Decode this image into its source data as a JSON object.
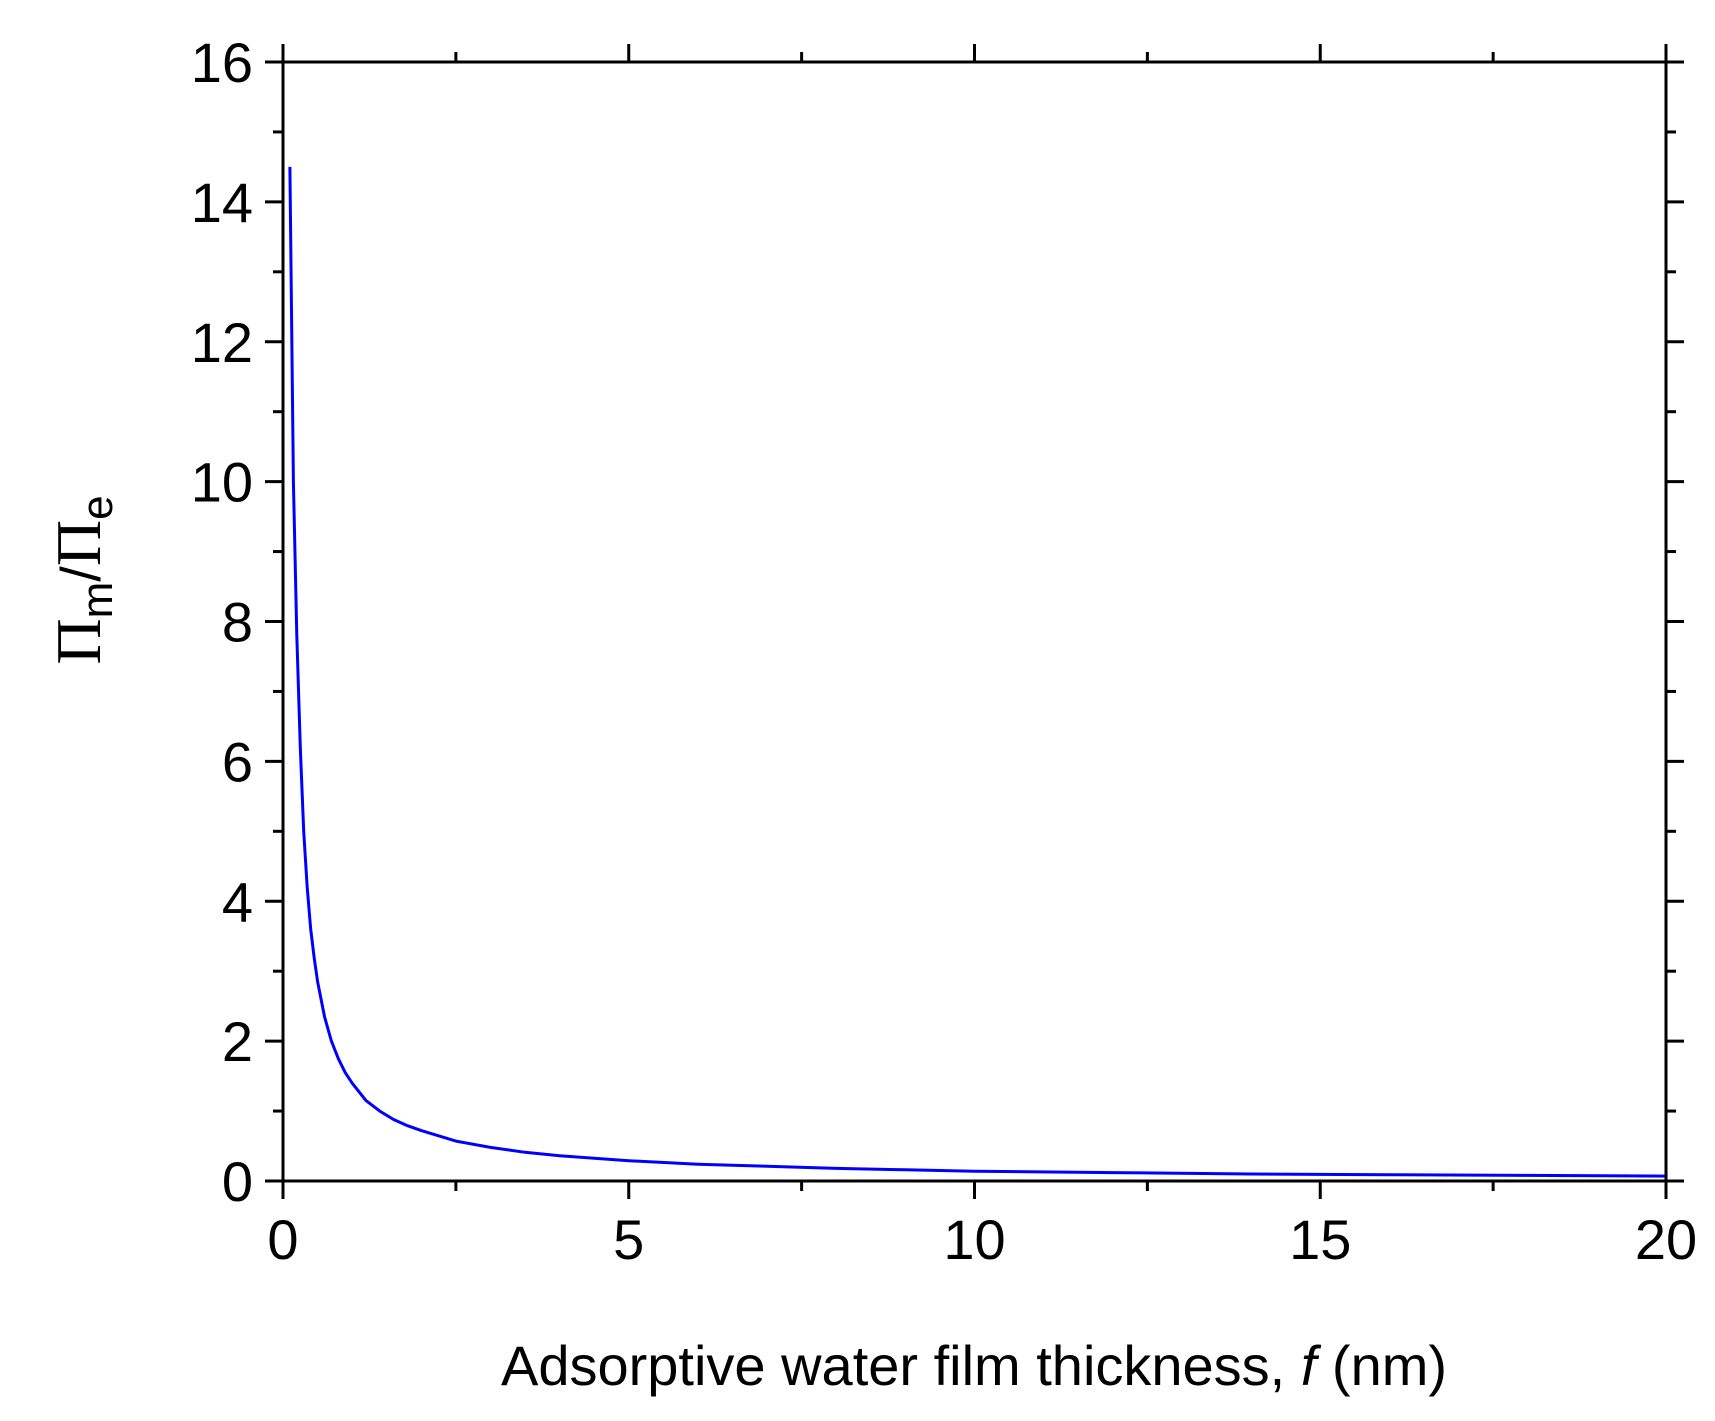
{
  "chart_data": {
    "type": "line",
    "xlabel": {
      "prefix": "Adsorptive water film thickness, ",
      "variable": "f",
      "suffix": " (nm)"
    },
    "ylabel": {
      "num": "Π",
      "num_sub": "m",
      "slash": "/",
      "den": "Π",
      "den_sub": "e"
    },
    "xlim": [
      0,
      20
    ],
    "ylim": [
      0,
      16
    ],
    "x_ticks": [
      0,
      5,
      10,
      15,
      20
    ],
    "x_tick_labels": [
      "0",
      "5",
      "10",
      "15",
      "20"
    ],
    "y_ticks": [
      0,
      2,
      4,
      6,
      8,
      10,
      12,
      14,
      16
    ],
    "y_tick_labels": [
      "0",
      "2",
      "4",
      "6",
      "8",
      "10",
      "12",
      "14",
      "16"
    ],
    "grid": false,
    "line_color": "#0000ff",
    "series": [
      {
        "x": [
          0.1,
          0.15,
          0.2,
          0.25,
          0.3,
          0.35,
          0.4,
          0.45,
          0.5,
          0.6,
          0.7,
          0.8,
          0.9,
          1.0,
          1.2,
          1.4,
          1.6,
          1.8,
          2.0,
          2.5,
          3.0,
          3.5,
          4.0,
          5.0,
          6.0,
          7.0,
          8.0,
          9.0,
          10.0,
          12.0,
          14.0,
          16.0,
          18.0,
          20.0
        ],
        "y": [
          14.5,
          10.0,
          7.8,
          6.2,
          5.0,
          4.2,
          3.6,
          3.2,
          2.85,
          2.35,
          2.0,
          1.75,
          1.55,
          1.4,
          1.15,
          1.0,
          0.88,
          0.79,
          0.72,
          0.57,
          0.48,
          0.41,
          0.36,
          0.29,
          0.24,
          0.21,
          0.18,
          0.16,
          0.14,
          0.12,
          0.1,
          0.09,
          0.08,
          0.07
        ]
      }
    ]
  }
}
